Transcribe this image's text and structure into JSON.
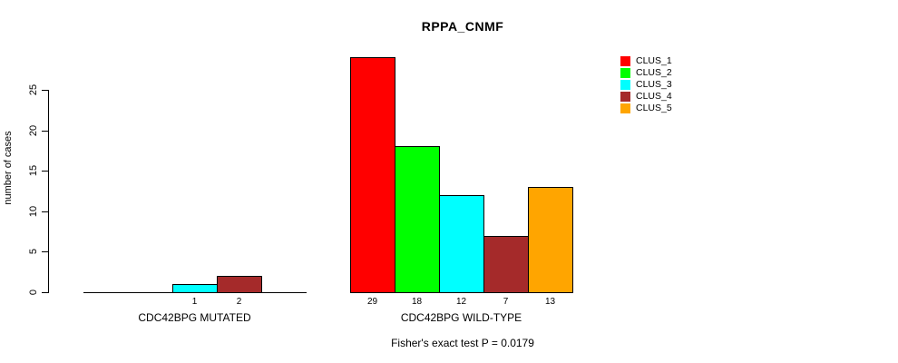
{
  "chart_data": {
    "type": "bar",
    "title": "RPPA_CNMF",
    "xlabel": "",
    "ylabel": "number of cases",
    "yticks": [
      0,
      5,
      10,
      15,
      20,
      25
    ],
    "ylim": [
      0,
      30
    ],
    "grid": false,
    "legend_position": "top-right",
    "categories": [
      "CDC42BPG MUTATED",
      "CDC42BPG WILD-TYPE"
    ],
    "series": [
      {
        "name": "CLUS_1",
        "color": "#FF0000",
        "values": [
          0,
          29
        ]
      },
      {
        "name": "CLUS_2",
        "color": "#00FF00",
        "values": [
          0,
          18
        ]
      },
      {
        "name": "CLUS_3",
        "color": "#00FFFF",
        "values": [
          1,
          12
        ]
      },
      {
        "name": "CLUS_4",
        "color": "#A52A2A",
        "values": [
          2,
          7
        ]
      },
      {
        "name": "CLUS_5",
        "color": "#FFA500",
        "values": [
          0,
          13
        ]
      }
    ],
    "bar_value_labels": "shown under each non-zero bar",
    "annotation": "Fisher's exact test P = 0.0179"
  },
  "legend": {
    "items": [
      {
        "label": "CLUS_1",
        "color": "#FF0000"
      },
      {
        "label": "CLUS_2",
        "color": "#00FF00"
      },
      {
        "label": "CLUS_3",
        "color": "#00FFFF"
      },
      {
        "label": "CLUS_4",
        "color": "#A52A2A"
      },
      {
        "label": "CLUS_5",
        "color": "#FFA500"
      }
    ]
  }
}
